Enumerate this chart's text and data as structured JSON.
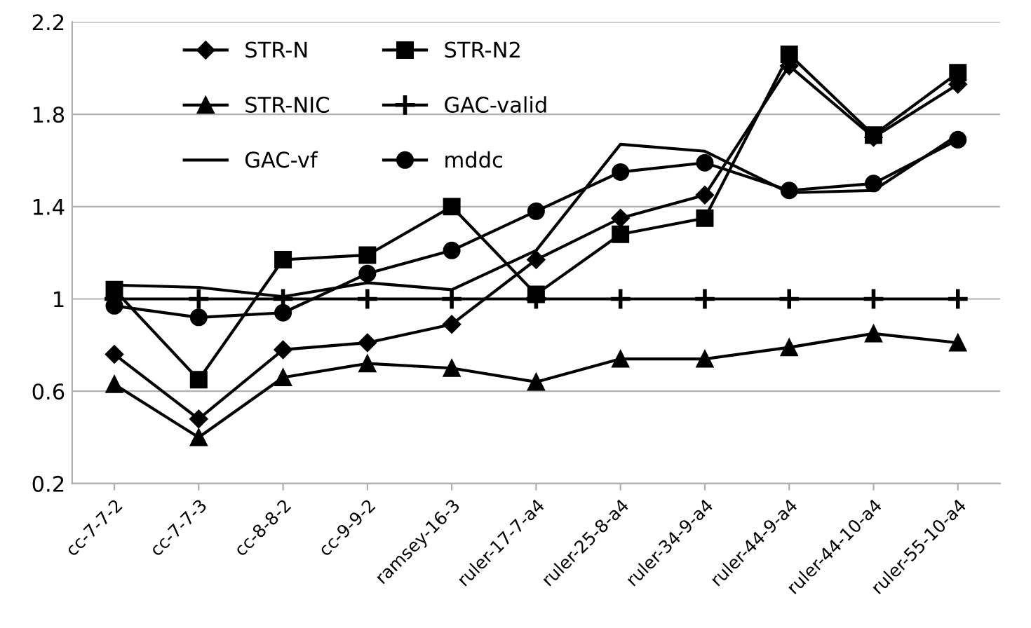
{
  "chart_data": {
    "type": "line",
    "categories": [
      "cc-7-7-2",
      "cc-7-7-3",
      "cc-8-8-2",
      "cc-9-9-2",
      "ramsey-16-3",
      "ruler-17-7-a4",
      "ruler-25-8-a4",
      "ruler-34-9-a4",
      "ruler-44-9-a4",
      "ruler-44-10-a4",
      "ruler-55-10-a4"
    ],
    "series": [
      {
        "name": "STR-N",
        "color": "#000000",
        "marker": "diamond",
        "values": [
          0.76,
          0.48,
          0.78,
          0.81,
          0.89,
          1.17,
          1.35,
          1.45,
          2.01,
          1.7,
          1.93
        ]
      },
      {
        "name": "STR-N2",
        "color": "#000000",
        "marker": "square",
        "values": [
          1.04,
          0.65,
          1.17,
          1.19,
          1.4,
          1.02,
          1.28,
          1.35,
          2.06,
          1.71,
          1.98
        ]
      },
      {
        "name": "STR-NIC",
        "color": "#000000",
        "marker": "triangle",
        "values": [
          0.63,
          0.4,
          0.66,
          0.72,
          0.7,
          0.64,
          0.74,
          0.74,
          0.79,
          0.85,
          0.81
        ]
      },
      {
        "name": "GAC-valid",
        "color": "#000000",
        "marker": "cross",
        "values": [
          1.0,
          1.0,
          1.0,
          1.0,
          1.0,
          1.0,
          1.0,
          1.0,
          1.0,
          1.0,
          1.0
        ]
      },
      {
        "name": "GAC-vf",
        "color": "#000000",
        "marker": "none",
        "values": [
          1.06,
          1.05,
          1.01,
          1.07,
          1.04,
          1.21,
          1.67,
          1.64,
          1.46,
          1.47,
          1.71
        ]
      },
      {
        "name": "mddc",
        "color": "#000000",
        "marker": "circle",
        "values": [
          0.97,
          0.92,
          0.94,
          1.11,
          1.21,
          1.38,
          1.55,
          1.59,
          1.47,
          1.5,
          1.69
        ]
      }
    ],
    "ylim": [
      0.2,
      2.2
    ],
    "yticks": [
      0.2,
      0.6,
      1,
      1.4,
      1.8,
      2.2
    ],
    "grid": "y",
    "legend": "top left",
    "line_style": "solid"
  }
}
